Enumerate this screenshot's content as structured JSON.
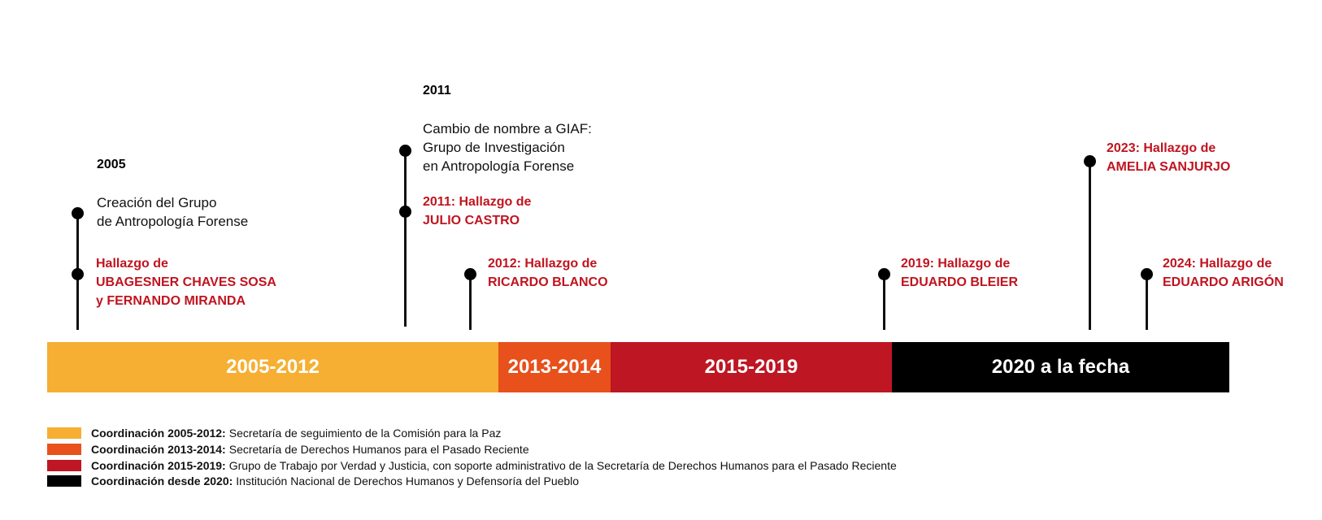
{
  "colors": {
    "p2005": "#f6af32",
    "p2013": "#e8501c",
    "p2015": "#be1622",
    "p2020": "#000000",
    "finding": "#c0141f"
  },
  "events": {
    "e2005": {
      "year": "2005",
      "text": "Creación del Grupo\nde Antropología Forense"
    },
    "e2011": {
      "year": "2011",
      "text": "Cambio de nombre a GIAF:\nGrupo de Investigación\nen Antropología Forense"
    }
  },
  "findings": {
    "f1": "Hallazgo de\nUBAGESNER CHAVES SOSA\ny FERNANDO MIRANDA",
    "f2": "2011: Hallazgo de\nJULIO CASTRO",
    "f3": "2012: Hallazgo de\nRICARDO BLANCO",
    "f4": "2019: Hallazgo de\nEDUARDO BLEIER",
    "f5": "2023: Hallazgo de\nAMELIA SANJURJO",
    "f6": "2024: Hallazgo de\nEDUARDO ARIGÓN"
  },
  "periods": [
    {
      "label": "2005-2012"
    },
    {
      "label": "2013-2014"
    },
    {
      "label": "2015-2019"
    },
    {
      "label": "2020 a la fecha"
    }
  ],
  "legend": [
    {
      "bold": "Coordinación 2005-2012:",
      "text": "Secretaría de seguimiento de la Comisión para la Paz"
    },
    {
      "bold": "Coordinación 2013-2014:",
      "text": "Secretaría de Derechos Humanos para el Pasado Reciente"
    },
    {
      "bold": "Coordinación 2015-2019:",
      "text": "Grupo de Trabajo por Verdad y Justicia, con soporte administrativo de la  Secretaría de Derechos Humanos para el Pasado Reciente"
    },
    {
      "bold": "Coordinación desde 2020:",
      "text": "Institución Nacional de Derechos Humanos y Defensoría del Pueblo"
    }
  ]
}
